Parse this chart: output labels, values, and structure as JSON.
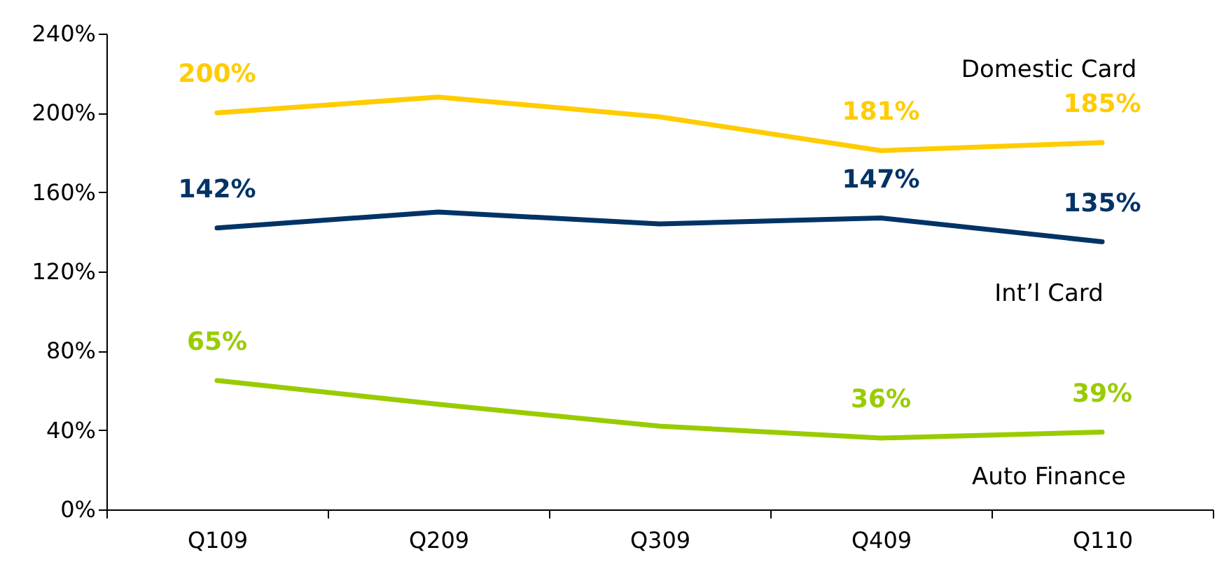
{
  "chart_data": {
    "type": "line",
    "categories": [
      "Q109",
      "Q209",
      "Q309",
      "Q409",
      "Q110"
    ],
    "series": [
      {
        "name": "Domestic Card",
        "color": "#ffcc00",
        "values": [
          200,
          208,
          198,
          181,
          185
        ],
        "value_labels": [
          "200%",
          null,
          null,
          "181%",
          "185%"
        ]
      },
      {
        "name": "Int’l Card",
        "color": "#003366",
        "values": [
          142,
          150,
          144,
          147,
          135
        ],
        "value_labels": [
          "142%",
          null,
          null,
          "147%",
          "135%"
        ]
      },
      {
        "name": "Auto Finance",
        "color": "#99cc00",
        "values": [
          65,
          53,
          42,
          36,
          39
        ],
        "value_labels": [
          "65%",
          null,
          null,
          "36%",
          "39%"
        ]
      }
    ],
    "ylim": [
      0,
      240
    ],
    "yticks": [
      {
        "value": 0,
        "label": "0%"
      },
      {
        "value": 40,
        "label": "40%"
      },
      {
        "value": 80,
        "label": "80%"
      },
      {
        "value": 120,
        "label": "120%"
      },
      {
        "value": 160,
        "label": "160%"
      },
      {
        "value": 200,
        "label": "200%"
      },
      {
        "value": 240,
        "label": "240%"
      }
    ],
    "grid": false,
    "legend": false,
    "marker": "none",
    "line_style": "solid"
  }
}
